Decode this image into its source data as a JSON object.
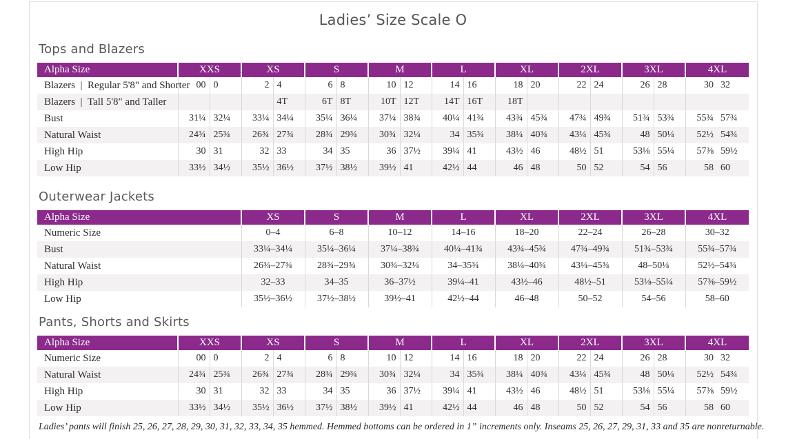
{
  "page": {
    "title": "Ladies’ Size Scale O",
    "footnote": "Ladies’ pants will finish 25, 26, 27, 28, 29, 30, 31, 32, 33, 34, 35 hemmed. Hemmed bottoms can be ordered in 1” increments only. Inseams 25, 26, 27, 29, 31, 33 and 35 are nonreturnable."
  },
  "colors": {
    "header_purple": "#8c2a8c",
    "row_stripe": "#f3f1f2",
    "cell_divider": "#dcd8d8",
    "page_edge": "#e0dfe6"
  },
  "tables": [
    {
      "section_title": "Tops and Blazers",
      "type": "split",
      "header_label": "Alpha Size",
      "sizes": [
        "XXS",
        "XS",
        "S",
        "M",
        "L",
        "XL",
        "2XL",
        "3XL",
        "4XL"
      ],
      "rows": [
        {
          "label": "Blazers | Regular 5'8\" and Shorter",
          "values": [
            "00",
            "0",
            "2",
            "4",
            "6",
            "8",
            "10",
            "12",
            "14",
            "16",
            "18",
            "20",
            "22",
            "24",
            "26",
            "28",
            "30",
            "32"
          ]
        },
        {
          "label": "Blazers | Tall 5'8\" and Taller",
          "values": [
            "",
            "",
            "",
            "4T",
            "6T",
            "8T",
            "10T",
            "12T",
            "14T",
            "16T",
            "18T",
            "",
            "",
            "",
            "",
            "",
            "",
            ""
          ]
        },
        {
          "label": "Bust",
          "values": [
            "31¼",
            "32¼",
            "33¼",
            "34¼",
            "35¼",
            "36¼",
            "37¼",
            "38¾",
            "40¼",
            "41¾",
            "43¾",
            "45¾",
            "47¾",
            "49¾",
            "51¾",
            "53¾",
            "55¾",
            "57¾"
          ]
        },
        {
          "label": "Natural Waist",
          "values": [
            "24¾",
            "25¾",
            "26¾",
            "27¾",
            "28¾",
            "29¾",
            "30¾",
            "32¼",
            "34",
            "35¾",
            "38¼",
            "40¾",
            "43¼",
            "45¾",
            "48",
            "50¼",
            "52½",
            "54¾"
          ]
        },
        {
          "label": "High Hip",
          "values": [
            "30",
            "31",
            "32",
            "33",
            "34",
            "35",
            "36",
            "37½",
            "39¼",
            "41",
            "43½",
            "46",
            "48½",
            "51",
            "53⅛",
            "55¼",
            "57⅜",
            "59½"
          ]
        },
        {
          "label": "Low Hip",
          "values": [
            "33½",
            "34½",
            "35½",
            "36½",
            "37½",
            "38½",
            "39½",
            "41",
            "42½",
            "44",
            "46",
            "48",
            "50",
            "52",
            "54",
            "56",
            "58",
            "60"
          ]
        }
      ]
    },
    {
      "section_title": "Outerwear Jackets",
      "type": "merged",
      "header_label": "Alpha Size",
      "sizes": [
        "XS",
        "S",
        "M",
        "L",
        "XL",
        "2XL",
        "3XL",
        "4XL"
      ],
      "rows": [
        {
          "label": "Numeric Size",
          "values": [
            "0–4",
            "6–8",
            "10–12",
            "14–16",
            "18–20",
            "22–24",
            "26–28",
            "30–32"
          ]
        },
        {
          "label": "Bust",
          "values": [
            "33¼–34¼",
            "35¼–36¼",
            "37¼–38¾",
            "40¼–41¾",
            "43¾–45¾",
            "47¾–49¾",
            "51¾–53¾",
            "55¾–57¾"
          ]
        },
        {
          "label": "Natural Waist",
          "values": [
            "26¾–27¾",
            "28¾–29¾",
            "30¾–32¼",
            "34–35¾",
            "38¼–40¾",
            "43¼–45¾",
            "48–50¼",
            "52½–54¾"
          ]
        },
        {
          "label": "High Hip",
          "values": [
            "32–33",
            "34–35",
            "36–37½",
            "39¼–41",
            "43½–46",
            "48½–51",
            "53⅛–55¼",
            "57⅜–59½"
          ]
        },
        {
          "label": "Low Hip",
          "values": [
            "35½–36½",
            "37½–38½",
            "39½–41",
            "42½–44",
            "46–48",
            "50–52",
            "54–56",
            "58–60"
          ]
        }
      ]
    },
    {
      "section_title": "Pants, Shorts and Skirts",
      "type": "split",
      "header_label": "Alpha Size",
      "sizes": [
        "XXS",
        "XS",
        "S",
        "M",
        "L",
        "XL",
        "2XL",
        "3XL",
        "4XL"
      ],
      "rows": [
        {
          "label": "Numeric Size",
          "values": [
            "00",
            "0",
            "2",
            "4",
            "6",
            "8",
            "10",
            "12",
            "14",
            "16",
            "18",
            "20",
            "22",
            "24",
            "26",
            "28",
            "30",
            "32"
          ]
        },
        {
          "label": "Natural Waist",
          "values": [
            "24¾",
            "25¾",
            "26¾",
            "27¾",
            "28¾",
            "29¾",
            "30¾",
            "32¼",
            "34",
            "35¾",
            "38¼",
            "40¾",
            "43¼",
            "45¾",
            "48",
            "50¼",
            "52½",
            "54¾"
          ]
        },
        {
          "label": "High Hip",
          "values": [
            "30",
            "31",
            "32",
            "33",
            "34",
            "35",
            "36",
            "37½",
            "39¼",
            "41",
            "43½",
            "46",
            "48½",
            "51",
            "53⅛",
            "55¼",
            "57⅜",
            "59½"
          ]
        },
        {
          "label": "Low Hip",
          "values": [
            "33½",
            "34½",
            "35½",
            "36½",
            "37½",
            "38½",
            "39½",
            "41",
            "42½",
            "44",
            "46",
            "48",
            "50",
            "52",
            "54",
            "56",
            "58",
            "60"
          ]
        }
      ]
    }
  ]
}
